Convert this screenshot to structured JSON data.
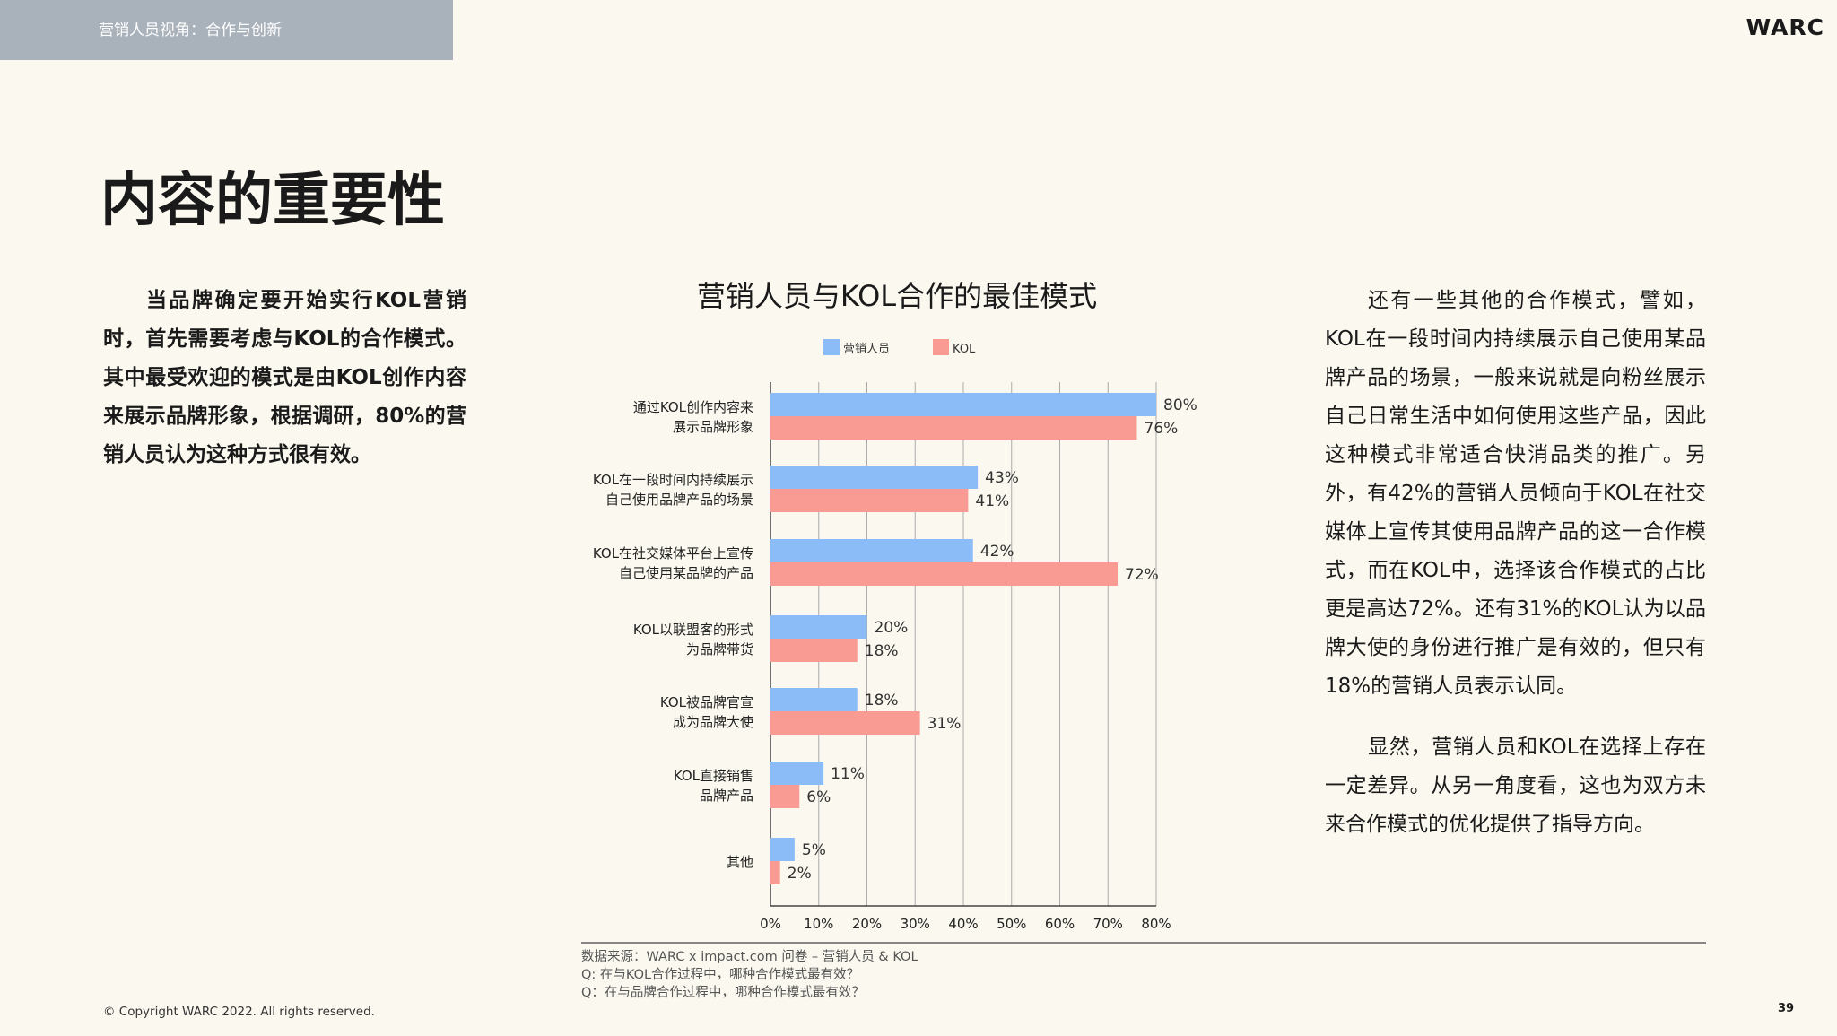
{
  "header": {
    "section": "营销人员视角：合作与创新",
    "logo": "WARC"
  },
  "title": "内容的重要性",
  "left_paragraph": "当品牌确定要开始实行KOL营销时，首先需要考虑与KOL的合作模式。其中最受欢迎的模式是由KOL创作内容来展示品牌形象，根据调研，80%的营销人员认为这种方式很有效。",
  "right_paragraphs": [
    "还有一些其他的合作模式，譬如，KOL在一段时间内持续展示自己使用某品牌产品的场景，一般来说就是向粉丝展示自己日常生活中如何使用这些产品，因此这种模式非常适合快消品类的推广。另外，有42%的营销人员倾向于KOL在社交媒体上宣传其使用品牌产品的这一合作模式，而在KOL中，选择该合作模式的占比更是高达72%。还有31%的KOL认为以品牌大使的身份进行推广是有效的，但只有18%的营销人员表示认同。",
    "显然，营销人员和KOL在选择上存在一定差异。从另一角度看，这也为双方未来合作模式的优化提供了指导方向。"
  ],
  "chart_data": {
    "type": "bar",
    "orientation": "horizontal",
    "title": "营销人员与KOL合作的最佳模式",
    "categories": [
      [
        "通过KOL创作内容来",
        "展示品牌形象"
      ],
      [
        "KOL在一段时间内持续展示",
        "自己使用品牌产品的场景"
      ],
      [
        "KOL在社交媒体平台上宣传",
        "自己使用某品牌的产品"
      ],
      [
        "KOL以联盟客的形式",
        "为品牌带货"
      ],
      [
        "KOL被品牌官宣",
        "成为品牌大使"
      ],
      [
        "KOL直接销售",
        "品牌产品"
      ],
      [
        "其他"
      ]
    ],
    "series": [
      {
        "name": "营销人员",
        "color": "#8bbcf8",
        "values": [
          80,
          43,
          42,
          20,
          18,
          11,
          5
        ]
      },
      {
        "name": "KOL",
        "color": "#f99b93",
        "values": [
          76,
          41,
          72,
          18,
          31,
          6,
          2
        ]
      }
    ],
    "xlim": [
      0,
      80
    ],
    "xticks": [
      "0%",
      "10%",
      "20%",
      "30%",
      "40%",
      "50%",
      "60%",
      "70%",
      "80%"
    ],
    "grid": true,
    "legend": "top"
  },
  "source": [
    "数据来源：WARC x impact.com 问卷 – 营销人员 & KOL",
    "Q: 在与KOL合作过程中，哪种合作模式最有效？",
    "Q：在与品牌合作过程中，哪种合作模式最有效？"
  ],
  "copyright": "© Copyright WARC 2022. All rights reserved.",
  "page_number": "39"
}
